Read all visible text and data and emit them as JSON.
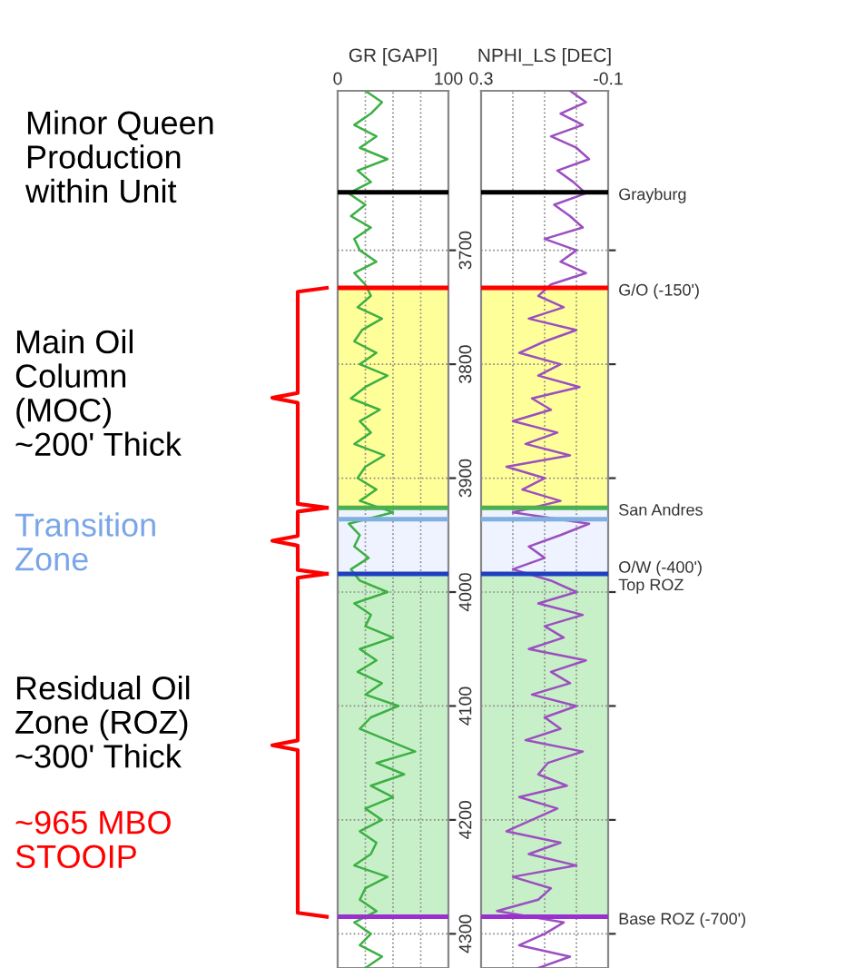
{
  "chart_data": [
    {
      "type": "line",
      "xlabel": "GR [GAPI]",
      "xlim": [
        0,
        100
      ],
      "ylim": [
        4330,
        3560
      ],
      "xticks": [
        0,
        {
          "value": 25,
          "label": null
        },
        {
          "value": 50,
          "label": null
        },
        {
          "value": 75,
          "label": null
        },
        100
      ],
      "yticks": [
        3700,
        3800,
        3900,
        4000,
        4100,
        4200,
        4300
      ],
      "grid": true,
      "series": [
        {
          "color": "#3cb043",
          "x": [
            25,
            40,
            30,
            15,
            35,
            20,
            45,
            18,
            30,
            10,
            25,
            12,
            30,
            15,
            20,
            35,
            15,
            25,
            30,
            18,
            40,
            22,
            15,
            35,
            20,
            45,
            25,
            12,
            38,
            20,
            30,
            15,
            42,
            25,
            18,
            35,
            20,
            50,
            10,
            20,
            15,
            28,
            12,
            20,
            45,
            15,
            30,
            25,
            50,
            20,
            35,
            18,
            40,
            25,
            55,
            30,
            20,
            45,
            70,
            35,
            60,
            30,
            50,
            25,
            40,
            20,
            35,
            30,
            15,
            45,
            25,
            20,
            35,
            15,
            30,
            20,
            40,
            25
          ],
          "values": [
            3560,
            3570,
            3580,
            3590,
            3600,
            3610,
            3620,
            3630,
            3640,
            3650,
            3660,
            3670,
            3680,
            3690,
            3700,
            3710,
            3720,
            3730,
            3740,
            3750,
            3760,
            3770,
            3780,
            3790,
            3800,
            3810,
            3820,
            3830,
            3840,
            3850,
            3860,
            3870,
            3880,
            3890,
            3900,
            3910,
            3920,
            3930,
            3940,
            3950,
            3960,
            3970,
            3980,
            3990,
            4000,
            4010,
            4020,
            4030,
            4040,
            4050,
            4060,
            4070,
            4080,
            4090,
            4100,
            4110,
            4120,
            4130,
            4140,
            4150,
            4160,
            4170,
            4180,
            4190,
            4200,
            4210,
            4220,
            4230,
            4240,
            4250,
            4260,
            4270,
            4280,
            4290,
            4300,
            4310,
            4320,
            4330
          ]
        }
      ],
      "ref_lines": [
        {
          "axis": "y",
          "value": 3649,
          "color": "#000000"
        },
        {
          "axis": "y",
          "value": 3733,
          "color": "#ff0000"
        },
        {
          "axis": "y",
          "value": 3926,
          "color": "#4caf50"
        },
        {
          "axis": "y",
          "value": 3936,
          "color": "#7fb0e0"
        },
        {
          "axis": "y",
          "value": 3984,
          "color": "#1f3fbf"
        },
        {
          "axis": "y",
          "value": 4285,
          "color": "#9b30d0"
        }
      ],
      "bands": [
        {
          "axis": "y",
          "from": 3733,
          "to": 3926,
          "color": "#ffff99"
        },
        {
          "axis": "y",
          "from": 3926,
          "to": 3984,
          "color": "#eef3ff"
        },
        {
          "axis": "y",
          "from": 3984,
          "to": 4285,
          "color": "#c8f0c8"
        }
      ],
      "annotations": [
        "Minor Queen\nProduction\nwithin Unit",
        "Main Oil\nColumn\n(MOC)\n~200' Thick",
        "Transition\nZone",
        "Residual Oil\nZone (ROZ)\n~300' Thick",
        "~965 MBO\nSTOOIP"
      ]
    },
    {
      "type": "line",
      "xlabel": "NPHI_LS [DEC]",
      "xlim": [
        0.3,
        -0.1
      ],
      "ylim": [
        4330,
        3560
      ],
      "xticks": [
        0.3,
        {
          "value": 0.2,
          "label": null
        },
        {
          "value": 0.1,
          "label": null
        },
        {
          "value": 0.0,
          "label": null
        },
        -0.1
      ],
      "yticks": [
        3700,
        3800,
        3900,
        4000,
        4100,
        4200,
        4300
      ],
      "grid": true,
      "tick_labels": "x",
      "series": [
        {
          "color": "#9b4fc0",
          "x": [
            0.02,
            -0.03,
            0.05,
            -0.02,
            0.08,
            0.0,
            -0.04,
            0.06,
            0.01,
            -0.03,
            0.07,
            0.02,
            -0.02,
            0.1,
            0.0,
            0.05,
            -0.03,
            0.08,
            0.12,
            0.04,
            0.15,
            0.0,
            0.1,
            0.18,
            0.05,
            0.12,
            -0.01,
            0.14,
            0.08,
            0.2,
            0.06,
            0.16,
            0.02,
            0.22,
            0.1,
            0.17,
            0.05,
            0.2,
            -0.04,
            0.05,
            0.15,
            0.1,
            0.2,
            0.08,
            0.0,
            0.12,
            -0.02,
            0.1,
            0.04,
            0.15,
            -0.03,
            0.08,
            0.02,
            0.14,
            0.0,
            0.1,
            0.05,
            0.16,
            -0.02,
            0.09,
            0.12,
            0.03,
            0.18,
            0.06,
            0.14,
            0.22,
            0.05,
            0.15,
            0.0,
            0.2,
            0.08,
            0.12,
            0.25,
            0.04,
            0.1,
            0.18,
            0.02,
            0.12
          ],
          "values": [
            3560,
            3570,
            3580,
            3590,
            3600,
            3610,
            3620,
            3630,
            3640,
            3650,
            3660,
            3670,
            3680,
            3690,
            3700,
            3710,
            3720,
            3730,
            3740,
            3750,
            3760,
            3770,
            3780,
            3790,
            3800,
            3810,
            3820,
            3830,
            3840,
            3850,
            3860,
            3870,
            3880,
            3890,
            3900,
            3910,
            3920,
            3930,
            3940,
            3950,
            3960,
            3970,
            3980,
            3990,
            4000,
            4010,
            4020,
            4030,
            4040,
            4050,
            4060,
            4070,
            4080,
            4090,
            4100,
            4110,
            4120,
            4130,
            4140,
            4150,
            4160,
            4170,
            4180,
            4190,
            4200,
            4210,
            4220,
            4230,
            4240,
            4250,
            4260,
            4270,
            4280,
            4290,
            4300,
            4310,
            4320,
            4330
          ]
        }
      ],
      "ref_lines": [
        {
          "axis": "y",
          "value": 3649,
          "label": "Grayburg",
          "color": "#000000"
        },
        {
          "axis": "y",
          "value": 3733,
          "label": "G/O (-150')",
          "color": "#ff0000"
        },
        {
          "axis": "y",
          "value": 3926,
          "label": "San Andres",
          "color": "#4caf50"
        },
        {
          "axis": "y",
          "value": 3936,
          "color": "#7fb0e0"
        },
        {
          "axis": "y",
          "value": 3984,
          "label": "O/W (-400')\nTop ROZ",
          "color": "#1f3fbf"
        },
        {
          "axis": "y",
          "value": 4285,
          "label": "Base ROZ (-700')",
          "color": "#9b30d0"
        }
      ],
      "bands": [
        {
          "axis": "y",
          "from": 3733,
          "to": 3926,
          "color": "#ffff99"
        },
        {
          "axis": "y",
          "from": 3926,
          "to": 3984,
          "color": "#eef3ff"
        },
        {
          "axis": "y",
          "from": 3984,
          "to": 4285,
          "color": "#c8f0c8"
        }
      ]
    }
  ]
}
